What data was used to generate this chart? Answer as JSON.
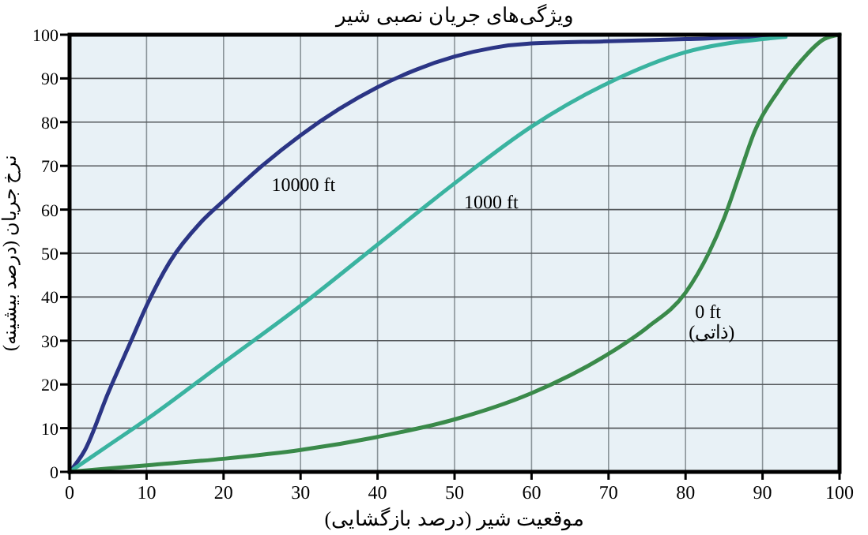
{
  "chart_data": {
    "type": "line",
    "title": "ویژگی‌های جریان نصبی شیر",
    "xlabel": "موقعیت شیر (درصد بازگشایی)",
    "ylabel": "نرخ جریان (درصد بیشینه)",
    "xlim": [
      0,
      100
    ],
    "xticks": [
      0,
      10,
      20,
      30,
      40,
      50,
      60,
      70,
      80,
      90,
      100
    ],
    "ylim": [
      0,
      100
    ],
    "yticks": [
      0,
      10,
      20,
      30,
      40,
      50,
      60,
      70,
      80,
      90,
      100
    ],
    "grid": true,
    "series": [
      {
        "name": "10000 ft",
        "color": "#2b3585",
        "x": [
          0,
          2,
          5,
          8,
          10,
          13,
          17,
          20,
          25,
          30,
          35,
          40,
          45,
          50,
          55,
          60,
          70,
          80,
          90,
          92
        ],
        "values": [
          0,
          5,
          18,
          30,
          38,
          48,
          57,
          62,
          70,
          77,
          83,
          88,
          92,
          95,
          97,
          98,
          98.5,
          99,
          99.5,
          99.5
        ]
      },
      {
        "name": "1000 ft",
        "color": "#3ab3a0",
        "x": [
          0,
          5,
          10,
          20,
          30,
          40,
          50,
          60,
          70,
          80,
          90,
          93
        ],
        "values": [
          0,
          6,
          12,
          25,
          38,
          52,
          66,
          79,
          89,
          96,
          99,
          99.5
        ]
      },
      {
        "name": "0 ft\n(ذاتی)",
        "color": "#3a8a4a",
        "x": [
          0,
          10,
          20,
          30,
          40,
          50,
          60,
          70,
          75,
          80,
          83,
          85,
          87,
          89,
          92,
          95,
          98,
          100
        ],
        "values": [
          0,
          1.5,
          3,
          5,
          8,
          12,
          18,
          27,
          33,
          41,
          50,
          58,
          68,
          78,
          87,
          94,
          99,
          100
        ]
      }
    ]
  }
}
